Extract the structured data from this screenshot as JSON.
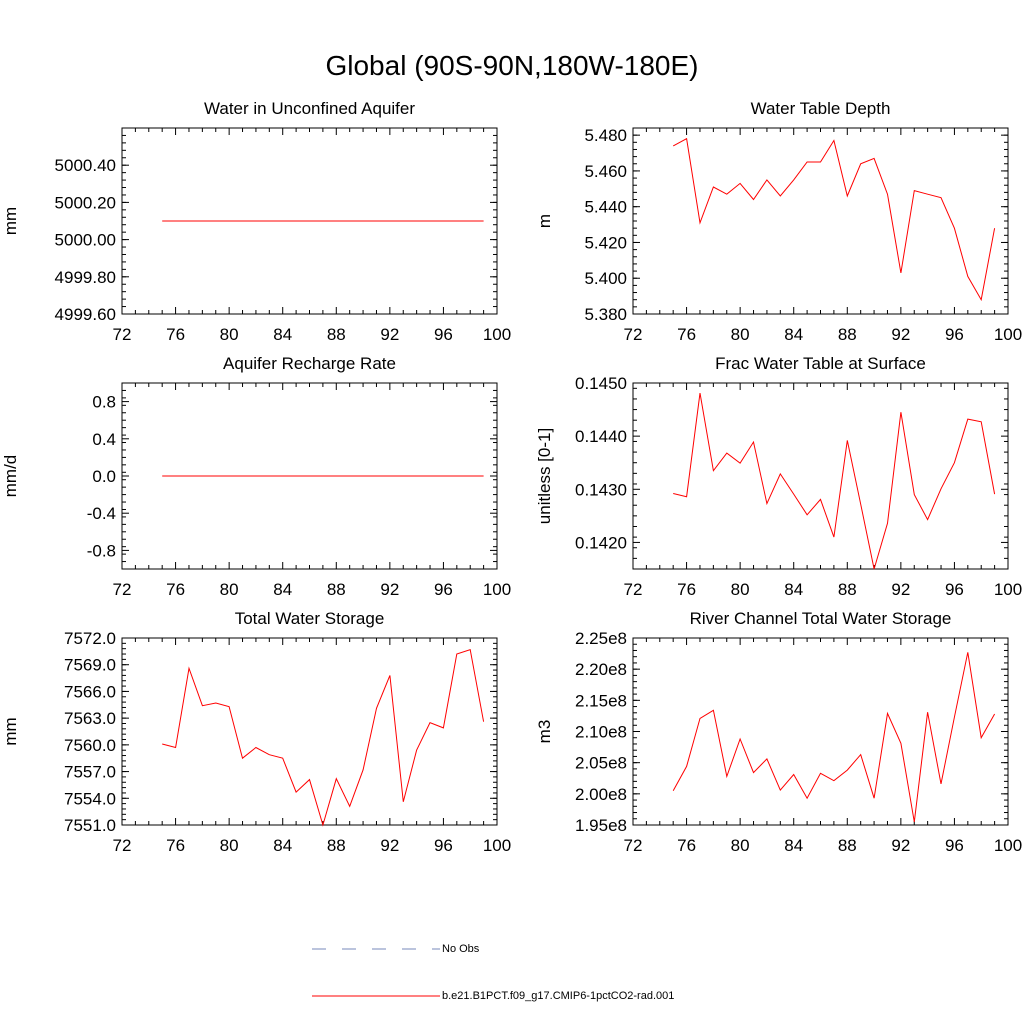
{
  "title": "Global (90S-90N,180W-180E)",
  "legend": {
    "no_obs": "No Obs",
    "model": "b.e21.B1PCT.f09_g17.CMIP6-1pctCO2-rad.001",
    "no_obs_color": "#7788bb",
    "model_color": "#ff0000"
  },
  "chart_data": [
    {
      "type": "line",
      "title": "Water in Unconfined Aquifer",
      "ylabel": "mm",
      "xlim": [
        72,
        100
      ],
      "ylim": [
        4999.6,
        5000.6
      ],
      "xticks": [
        "72",
        "76",
        "80",
        "84",
        "88",
        "92",
        "96",
        "100"
      ],
      "yticks": [
        "4999.60",
        "4999.80",
        "5000.00",
        "5000.20",
        "5000.40"
      ],
      "ytick_values": [
        4999.6,
        4999.8,
        5000.0,
        5000.2,
        5000.4
      ],
      "x": [
        75,
        76,
        77,
        78,
        79,
        80,
        81,
        82,
        83,
        84,
        85,
        86,
        87,
        88,
        89,
        90,
        91,
        92,
        93,
        94,
        95,
        96,
        97,
        98,
        99
      ],
      "values": [
        5000.1,
        5000.1,
        5000.1,
        5000.1,
        5000.1,
        5000.1,
        5000.1,
        5000.1,
        5000.1,
        5000.1,
        5000.1,
        5000.1,
        5000.1,
        5000.1,
        5000.1,
        5000.1,
        5000.1,
        5000.1,
        5000.1,
        5000.1,
        5000.1,
        5000.1,
        5000.1,
        5000.1,
        5000.1
      ]
    },
    {
      "type": "line",
      "title": "Water Table Depth",
      "ylabel": "m",
      "xlim": [
        72,
        100
      ],
      "ylim": [
        5.38,
        5.484
      ],
      "xticks": [
        "72",
        "76",
        "80",
        "84",
        "88",
        "92",
        "96",
        "100"
      ],
      "yticks": [
        "5.380",
        "5.400",
        "5.420",
        "5.440",
        "5.460",
        "5.480"
      ],
      "ytick_values": [
        5.38,
        5.4,
        5.42,
        5.44,
        5.46,
        5.48
      ],
      "x": [
        75,
        76,
        77,
        78,
        79,
        80,
        81,
        82,
        83,
        84,
        85,
        86,
        87,
        88,
        89,
        90,
        91,
        92,
        93,
        94,
        95,
        96,
        97,
        98,
        99
      ],
      "values": [
        5.474,
        5.478,
        5.431,
        5.451,
        5.447,
        5.453,
        5.444,
        5.455,
        5.446,
        5.455,
        5.465,
        5.465,
        5.477,
        5.446,
        5.464,
        5.467,
        5.447,
        5.403,
        5.449,
        5.447,
        5.445,
        5.428,
        5.401,
        5.388,
        5.428
      ]
    },
    {
      "type": "line",
      "title": "Aquifer Recharge Rate",
      "ylabel": "mm/d",
      "xlim": [
        72,
        100
      ],
      "ylim": [
        -1.0,
        1.0
      ],
      "xticks": [
        "72",
        "76",
        "80",
        "84",
        "88",
        "92",
        "96",
        "100"
      ],
      "yticks": [
        "-0.8",
        "-0.4",
        "0.0",
        "0.4",
        "0.8"
      ],
      "ytick_values": [
        -0.8,
        -0.4,
        0.0,
        0.4,
        0.8
      ],
      "x": [
        75,
        76,
        77,
        78,
        79,
        80,
        81,
        82,
        83,
        84,
        85,
        86,
        87,
        88,
        89,
        90,
        91,
        92,
        93,
        94,
        95,
        96,
        97,
        98,
        99
      ],
      "values": [
        0,
        0,
        0,
        0,
        0,
        0,
        0,
        0,
        0,
        0,
        0,
        0,
        0,
        0,
        0,
        0,
        0,
        0,
        0,
        0,
        0,
        0,
        0,
        0,
        0
      ]
    },
    {
      "type": "line",
      "title": "Frac Water Table at Surface",
      "ylabel": "unitless [0-1]",
      "xlim": [
        72,
        100
      ],
      "ylim": [
        0.1415,
        0.145
      ],
      "xticks": [
        "72",
        "76",
        "80",
        "84",
        "88",
        "92",
        "96",
        "100"
      ],
      "yticks": [
        "0.1420",
        "0.1430",
        "0.1440",
        "0.1450"
      ],
      "ytick_values": [
        0.142,
        0.143,
        0.144,
        0.145
      ],
      "x": [
        75,
        76,
        77,
        78,
        79,
        80,
        81,
        82,
        83,
        84,
        85,
        86,
        87,
        88,
        89,
        90,
        91,
        92,
        93,
        94,
        95,
        96,
        97,
        98,
        99
      ],
      "values": [
        0.14292,
        0.14286,
        0.14481,
        0.14335,
        0.14368,
        0.14349,
        0.14389,
        0.14273,
        0.14329,
        0.14291,
        0.14252,
        0.14281,
        0.1421,
        0.14392,
        0.14272,
        0.1415,
        0.14236,
        0.14445,
        0.1429,
        0.14243,
        0.14301,
        0.1435,
        0.14432,
        0.14427,
        0.14291
      ]
    },
    {
      "type": "line",
      "title": "Total Water Storage",
      "ylabel": "mm",
      "xlim": [
        72,
        100
      ],
      "ylim": [
        7551.0,
        7572.0
      ],
      "xticks": [
        "72",
        "76",
        "80",
        "84",
        "88",
        "92",
        "96",
        "100"
      ],
      "yticks": [
        "7551.0",
        "7554.0",
        "7557.0",
        "7560.0",
        "7563.0",
        "7566.0",
        "7569.0",
        "7572.0"
      ],
      "ytick_values": [
        7551,
        7554,
        7557,
        7560,
        7563,
        7566,
        7569,
        7572
      ],
      "x": [
        75,
        76,
        77,
        78,
        79,
        80,
        81,
        82,
        83,
        84,
        85,
        86,
        87,
        88,
        89,
        90,
        91,
        92,
        93,
        94,
        95,
        96,
        97,
        98,
        99
      ],
      "values": [
        7560.1,
        7559.7,
        7568.6,
        7564.4,
        7564.7,
        7564.3,
        7558.5,
        7559.7,
        7558.9,
        7558.5,
        7554.7,
        7556.1,
        7551.0,
        7556.2,
        7553.1,
        7557.2,
        7564.1,
        7567.8,
        7553.6,
        7559.4,
        7562.5,
        7561.9,
        7570.2,
        7570.7,
        7562.6
      ]
    },
    {
      "type": "line",
      "title": "River Channel Total Water Storage",
      "ylabel": "m3",
      "xlim": [
        72,
        100
      ],
      "ylim": [
        1.95,
        2.25
      ],
      "xticks": [
        "72",
        "76",
        "80",
        "84",
        "88",
        "92",
        "96",
        "100"
      ],
      "yticks": [
        "1.95e8",
        "2.00e8",
        "2.05e8",
        "2.10e8",
        "2.15e8",
        "2.20e8",
        "2.25e8"
      ],
      "ytick_values": [
        1.95,
        2.0,
        2.05,
        2.1,
        2.15,
        2.2,
        2.25
      ],
      "value_unit": "e8",
      "x": [
        75,
        76,
        77,
        78,
        79,
        80,
        81,
        82,
        83,
        84,
        85,
        86,
        87,
        88,
        89,
        90,
        91,
        92,
        93,
        94,
        95,
        96,
        97,
        98,
        99
      ],
      "values": [
        2.005,
        2.044,
        2.121,
        2.134,
        2.028,
        2.088,
        2.034,
        2.056,
        2.006,
        2.031,
        1.993,
        2.033,
        2.021,
        2.038,
        2.063,
        1.993,
        2.129,
        2.081,
        1.955,
        2.131,
        2.016,
        2.123,
        2.227,
        2.09,
        2.128
      ]
    }
  ]
}
